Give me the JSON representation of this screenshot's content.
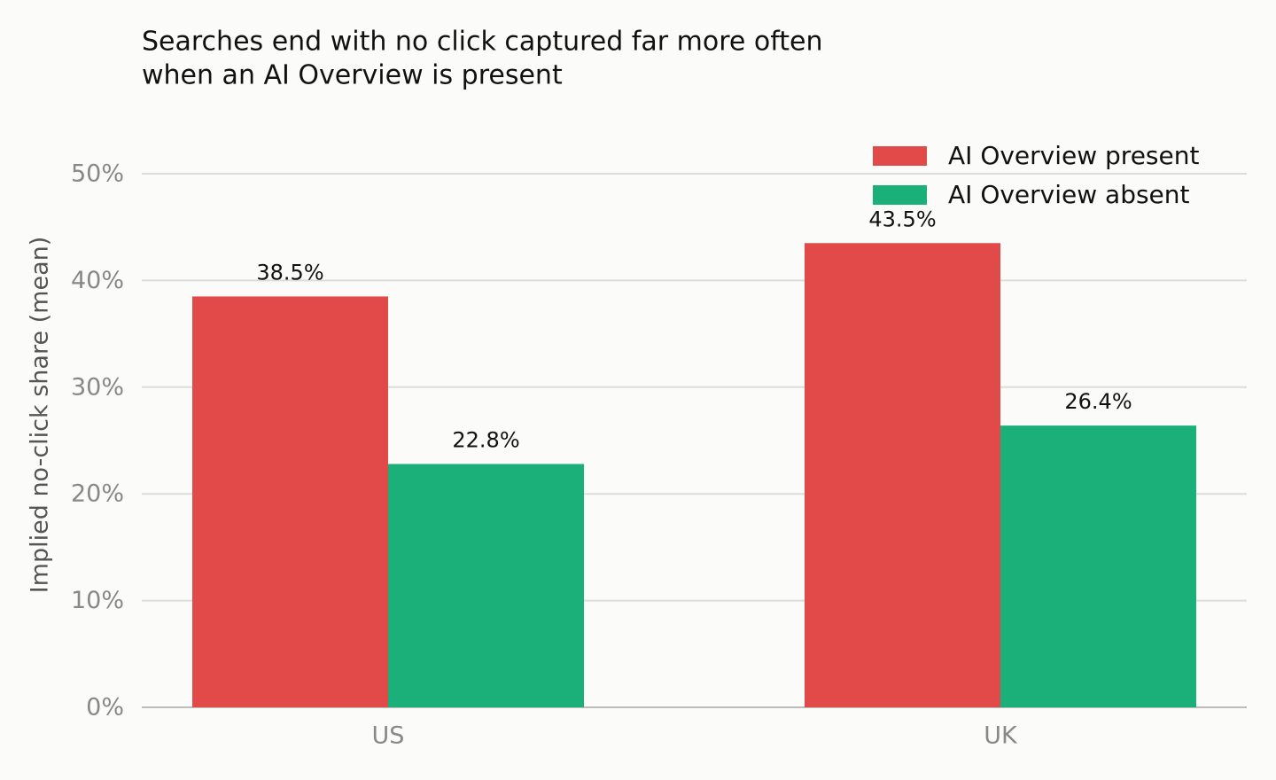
{
  "chart_data": {
    "type": "bar",
    "title": [
      "Searches end with no click captured far more often",
      "when an AI Overview is present"
    ],
    "y_label": "Implied no-click share (mean)",
    "categories": [
      "US",
      "UK"
    ],
    "series": [
      {
        "name": "AI Overview present",
        "color": "#e24a4a",
        "values": [
          38.5,
          43.5
        ],
        "value_labels": [
          "38.5%",
          "43.5%"
        ]
      },
      {
        "name": "AI Overview absent",
        "color": "#1bb07a",
        "values": [
          22.8,
          26.4
        ],
        "value_labels": [
          "22.8%",
          "26.4%"
        ]
      }
    ],
    "ylim": [
      0,
      50
    ],
    "yticks": [
      {
        "value": 0,
        "label": "0%"
      },
      {
        "value": 10,
        "label": "10%"
      },
      {
        "value": 20,
        "label": "20%"
      },
      {
        "value": 30,
        "label": "30%"
      },
      {
        "value": 40,
        "label": "40%"
      },
      {
        "value": 50,
        "label": "50%"
      }
    ],
    "grid": true,
    "legend": "upper right"
  }
}
